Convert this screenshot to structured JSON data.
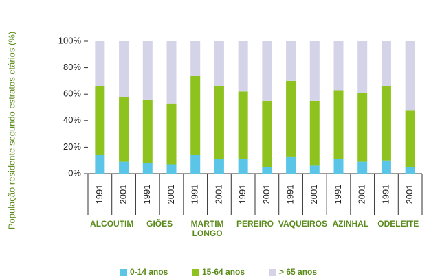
{
  "chart_data": {
    "type": "stacked_bar",
    "y_label": "População residente segundo estratos etários (%)",
    "categories": [
      "1991",
      "2001",
      "1991",
      "2001",
      "1991",
      "2001",
      "1991",
      "2001",
      "1991",
      "2001",
      "1991",
      "2001",
      "1991",
      "2001"
    ],
    "groups": [
      "ALCOUTIM",
      "GIÕES",
      "MARTIM LONGO",
      "PEREIRO",
      "VAQUEIROS",
      "AZINHAL",
      "ODELEITE"
    ],
    "series": [
      {
        "name": "0-14 anos",
        "color": "#5bc5e8",
        "values": [
          14,
          9,
          8,
          7,
          14,
          11,
          11,
          5,
          13,
          6,
          11,
          9,
          10,
          5
        ]
      },
      {
        "name": "15-64 anos",
        "color": "#8dc21f",
        "values": [
          52,
          49,
          48,
          46,
          60,
          55,
          51,
          50,
          57,
          49,
          52,
          52,
          56,
          43
        ]
      },
      {
        "name": "> 65 anos",
        "color": "#d4d3e8",
        "values": [
          34,
          42,
          44,
          47,
          26,
          34,
          38,
          45,
          30,
          45,
          37,
          39,
          34,
          52
        ]
      }
    ],
    "ylim": [
      0,
      100
    ],
    "yticks": [
      {
        "value": 0,
        "label": "0%"
      },
      {
        "value": 20,
        "label": "20%"
      },
      {
        "value": 40,
        "label": "40%"
      },
      {
        "value": 60,
        "label": "60%"
      },
      {
        "value": 80,
        "label": "80%"
      },
      {
        "value": 100,
        "label": "100%"
      }
    ],
    "grid": false
  }
}
